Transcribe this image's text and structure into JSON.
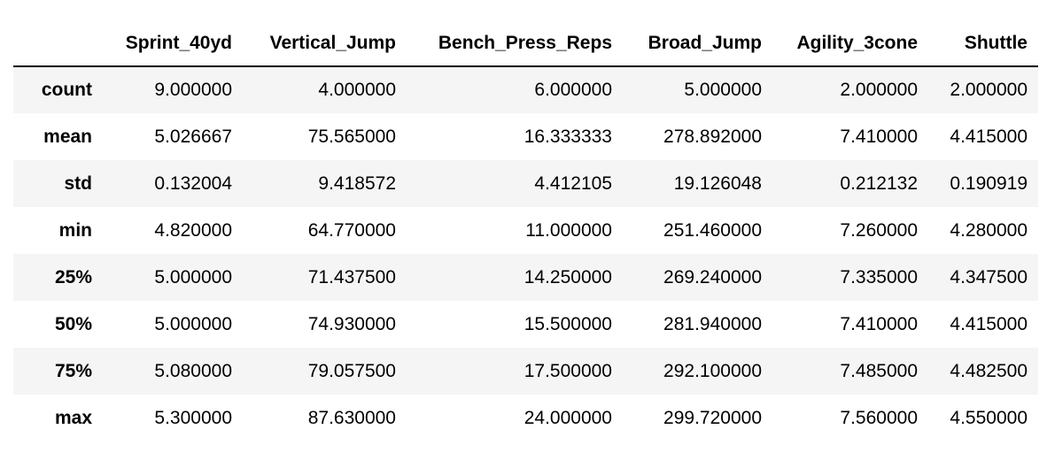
{
  "table": {
    "index_header": "",
    "columns": [
      "Sprint_40yd",
      "Vertical_Jump",
      "Bench_Press_Reps",
      "Broad_Jump",
      "Agility_3cone",
      "Shuttle"
    ],
    "rows": [
      {
        "label": "count",
        "values": [
          "9.000000",
          "4.000000",
          "6.000000",
          "5.000000",
          "2.000000",
          "2.000000"
        ]
      },
      {
        "label": "mean",
        "values": [
          "5.026667",
          "75.565000",
          "16.333333",
          "278.892000",
          "7.410000",
          "4.415000"
        ]
      },
      {
        "label": "std",
        "values": [
          "0.132004",
          "9.418572",
          "4.412105",
          "19.126048",
          "0.212132",
          "0.190919"
        ]
      },
      {
        "label": "min",
        "values": [
          "4.820000",
          "64.770000",
          "11.000000",
          "251.460000",
          "7.260000",
          "4.280000"
        ]
      },
      {
        "label": "25%",
        "values": [
          "5.000000",
          "71.437500",
          "14.250000",
          "269.240000",
          "7.335000",
          "4.347500"
        ]
      },
      {
        "label": "50%",
        "values": [
          "5.000000",
          "74.930000",
          "15.500000",
          "281.940000",
          "7.410000",
          "4.415000"
        ]
      },
      {
        "label": "75%",
        "values": [
          "5.080000",
          "79.057500",
          "17.500000",
          "292.100000",
          "7.485000",
          "4.482500"
        ]
      },
      {
        "label": "max",
        "values": [
          "5.300000",
          "87.630000",
          "24.000000",
          "299.720000",
          "7.560000",
          "4.550000"
        ]
      }
    ]
  },
  "colors": {
    "stripe": "#f5f5f5",
    "header_rule": "#000000"
  }
}
